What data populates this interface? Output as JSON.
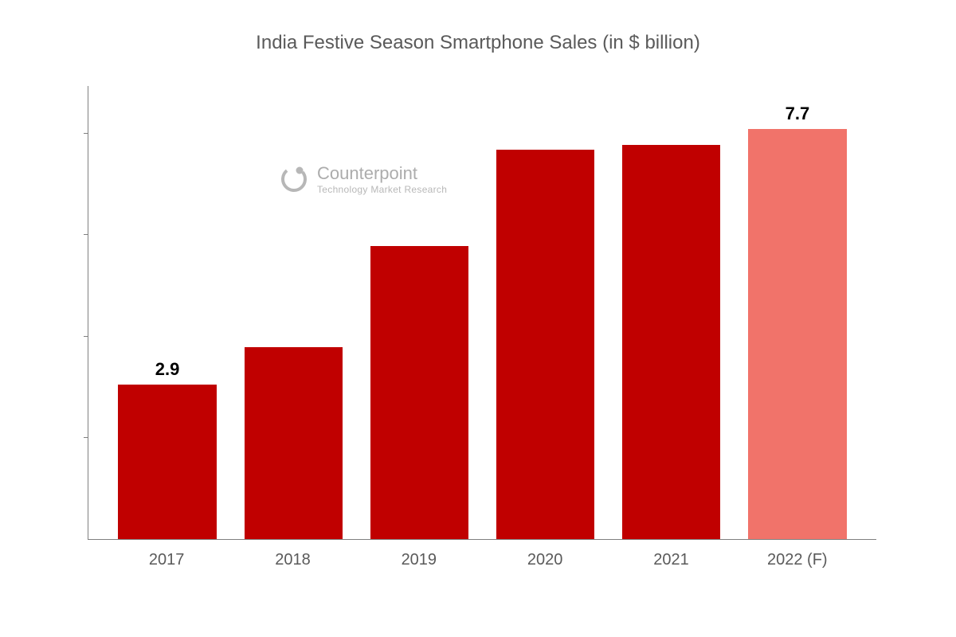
{
  "chart": {
    "type": "bar",
    "title": "India Festive Season Smartphone Sales (in $ billion)",
    "title_fontsize": 24,
    "title_color": "#5a5a5a",
    "categories": [
      "2017",
      "2018",
      "2019",
      "2020",
      "2021",
      "2022 (F)"
    ],
    "values": [
      2.9,
      3.6,
      5.5,
      7.3,
      7.4,
      7.7
    ],
    "bar_labels": [
      "2.9",
      "",
      "",
      "",
      "",
      "7.7"
    ],
    "bar_colors": [
      "#c00000",
      "#c00000",
      "#c00000",
      "#c00000",
      "#c00000",
      "#f1736a"
    ],
    "ylim": [
      0,
      8.5
    ],
    "y_ticks": [
      1.9,
      3.8,
      5.7,
      7.6
    ],
    "axis_color": "#808080",
    "background_color": "#ffffff",
    "bar_label_fontsize": 22,
    "bar_label_fontweight": "700",
    "x_label_fontsize": 20,
    "x_label_color": "#5a5a5a",
    "bar_width": 0.78
  },
  "watermark": {
    "name": "Counterpoint",
    "subtitle": "Technology Market Research",
    "name_fontsize": 22,
    "subtitle_fontsize": 12,
    "color": "#8a8a8a",
    "icon_color": "#8a8a8a"
  }
}
